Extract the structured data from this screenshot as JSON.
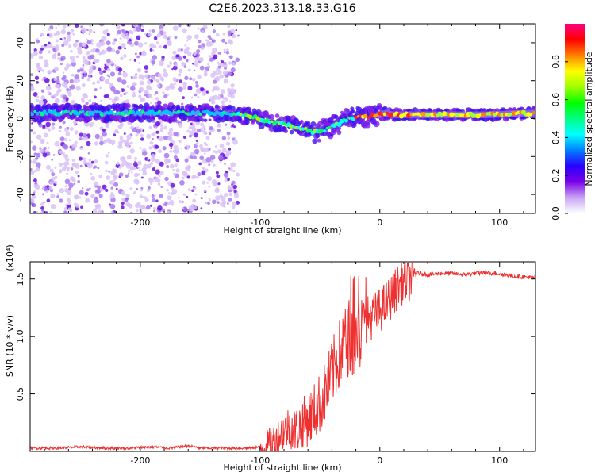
{
  "title": "C2E6.2023.313.18.33.G16",
  "chart_data": [
    {
      "type": "heatmap",
      "description_kind": "spectrogram",
      "xlabel": "Height of straight line (km)",
      "ylabel": "Frequency (Hz)",
      "xlim": [
        -292,
        130
      ],
      "ylim": [
        -50,
        50
      ],
      "x_ticks": [
        -200,
        -100,
        0,
        100
      ],
      "x_tick_labels": [
        "-200",
        "-100",
        "0",
        "100"
      ],
      "y_ticks": [
        -40,
        -20,
        0,
        20,
        40
      ],
      "y_tick_labels": [
        "-40",
        "-20",
        "0",
        "20",
        "40"
      ],
      "colorbar": {
        "label": "Normalized spectral amplitude",
        "range": [
          0,
          1
        ],
        "ticks": [
          0.0,
          0.2,
          0.4,
          0.6,
          0.8
        ],
        "tick_labels": [
          "0.0",
          "0.2",
          "0.4",
          "0.6",
          "0.8"
        ],
        "colormap": [
          "#ffffff",
          "#c9a6f5",
          "#7a00e6",
          "#2a00ff",
          "#0080ff",
          "#00ffff",
          "#00ff80",
          "#00ff00",
          "#a0ff00",
          "#ffff00",
          "#ff8000",
          "#ff0000",
          "#ff0080"
        ]
      },
      "noise_region_x": [
        -292,
        -118
      ],
      "trace": {
        "x": [
          -292,
          -250,
          -200,
          -160,
          -130,
          -118,
          -110,
          -100,
          -90,
          -80,
          -70,
          -60,
          -55,
          -50,
          -45,
          -40,
          -35,
          -30,
          -25,
          -20,
          -10,
          0,
          5,
          10,
          30,
          60,
          90,
          130
        ],
        "y": [
          3,
          3,
          3,
          3,
          3,
          2,
          1,
          0,
          -2,
          -3,
          -4,
          -6,
          -7,
          -7,
          -6,
          -4,
          -3,
          -1,
          0,
          1,
          1,
          2,
          3,
          2,
          2,
          2,
          2,
          3
        ]
      }
    },
    {
      "type": "line",
      "xlabel": "Height of straight line (km)",
      "ylabel": "SNR (10 * v/v)",
      "y_multiplier": "(x10⁴)",
      "xlim": [
        -292,
        130
      ],
      "ylim": [
        0,
        1.65
      ],
      "x_ticks": [
        -200,
        -100,
        0,
        100
      ],
      "x_tick_labels": [
        "-200",
        "-100",
        "0",
        "100"
      ],
      "y_ticks": [
        0.5,
        1.0,
        1.5
      ],
      "y_tick_labels": [
        "0.5",
        "1.0",
        "1.5"
      ],
      "color": "#ee3030",
      "series": [
        {
          "x": [
            -292,
            -270,
            -250,
            -230,
            -210,
            -190,
            -175,
            -160,
            -150,
            -140,
            -120,
            -110,
            -100,
            -95,
            -90,
            -85,
            -80,
            -75,
            -70,
            -65,
            -60,
            -55,
            -50,
            -45,
            -40,
            -35,
            -30,
            -25,
            -22,
            -20,
            -18,
            -15,
            -10,
            -5,
            0,
            5,
            10,
            15,
            20,
            25,
            30,
            35,
            40,
            50,
            60,
            70,
            80,
            90,
            95,
            100,
            110,
            120,
            130
          ],
          "y": [
            0.03,
            0.03,
            0.04,
            0.03,
            0.03,
            0.04,
            0.03,
            0.05,
            0.03,
            0.03,
            0.03,
            0.03,
            0.04,
            0.06,
            0.09,
            0.14,
            0.2,
            0.24,
            0.2,
            0.27,
            0.3,
            0.37,
            0.45,
            0.55,
            0.7,
            0.85,
            0.95,
            1.05,
            1.0,
            1.1,
            1.05,
            1.12,
            1.18,
            1.2,
            1.25,
            1.3,
            1.38,
            1.45,
            1.5,
            1.53,
            1.55,
            1.55,
            1.54,
            1.55,
            1.55,
            1.54,
            1.55,
            1.56,
            1.55,
            1.55,
            1.53,
            1.52,
            1.51
          ]
        }
      ]
    }
  ]
}
